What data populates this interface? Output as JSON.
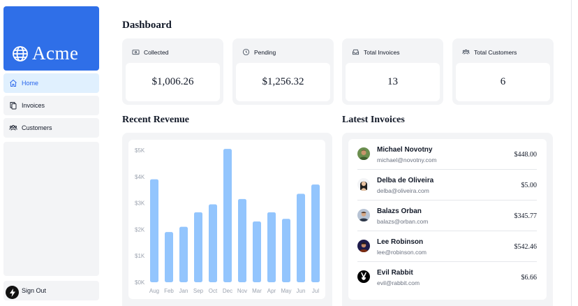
{
  "sidebar": {
    "logo_text": "Acme",
    "items": [
      {
        "label": "Home",
        "icon": "home-icon",
        "active": true
      },
      {
        "label": "Invoices",
        "icon": "document-duplicate-icon",
        "active": false
      },
      {
        "label": "Customers",
        "icon": "user-group-icon",
        "active": false
      }
    ],
    "signout_label": "Sign Out"
  },
  "main": {
    "title": "Dashboard",
    "cards": [
      {
        "label": "Collected",
        "value": "$1,006.26",
        "icon": "banknotes-icon"
      },
      {
        "label": "Pending",
        "value": "$1,256.32",
        "icon": "clock-icon"
      },
      {
        "label": "Total Invoices",
        "value": "13",
        "icon": "inbox-icon"
      },
      {
        "label": "Total Customers",
        "value": "6",
        "icon": "user-group-icon"
      }
    ],
    "revenue_title": "Recent Revenue",
    "invoices_title": "Latest Invoices",
    "invoices": [
      {
        "name": "Michael Novotny",
        "email": "michael@novotny.com",
        "amount": "$448.00"
      },
      {
        "name": "Delba de Oliveira",
        "email": "delba@oliveira.com",
        "amount": "$5.00"
      },
      {
        "name": "Balazs Orban",
        "email": "balazs@orban.com",
        "amount": "$345.77"
      },
      {
        "name": "Lee Robinson",
        "email": "lee@robinson.com",
        "amount": "$542.46"
      },
      {
        "name": "Evil Rabbit",
        "email": "evil@rabbit.com",
        "amount": "$6.66"
      }
    ]
  },
  "colors": {
    "brand": "#2f6fe8",
    "bar": "#93c5fd",
    "active_bg": "#e0f0fe",
    "active_text": "#2563eb"
  },
  "chart_data": {
    "type": "bar",
    "categories": [
      "Aug",
      "Feb",
      "Jan",
      "Sep",
      "Oct",
      "Dec",
      "Nov",
      "Mar",
      "Apr",
      "May",
      "Jun",
      "Jul"
    ],
    "values": [
      3900,
      1900,
      2100,
      2650,
      2950,
      5050,
      3150,
      2300,
      2650,
      2400,
      3350,
      3700
    ],
    "y_ticks": [
      "$0K",
      "$1K",
      "$2K",
      "$3K",
      "$4K",
      "$5K"
    ],
    "ylim": [
      0,
      5000
    ],
    "title": "",
    "xlabel": "",
    "ylabel": "",
    "grid": false
  }
}
